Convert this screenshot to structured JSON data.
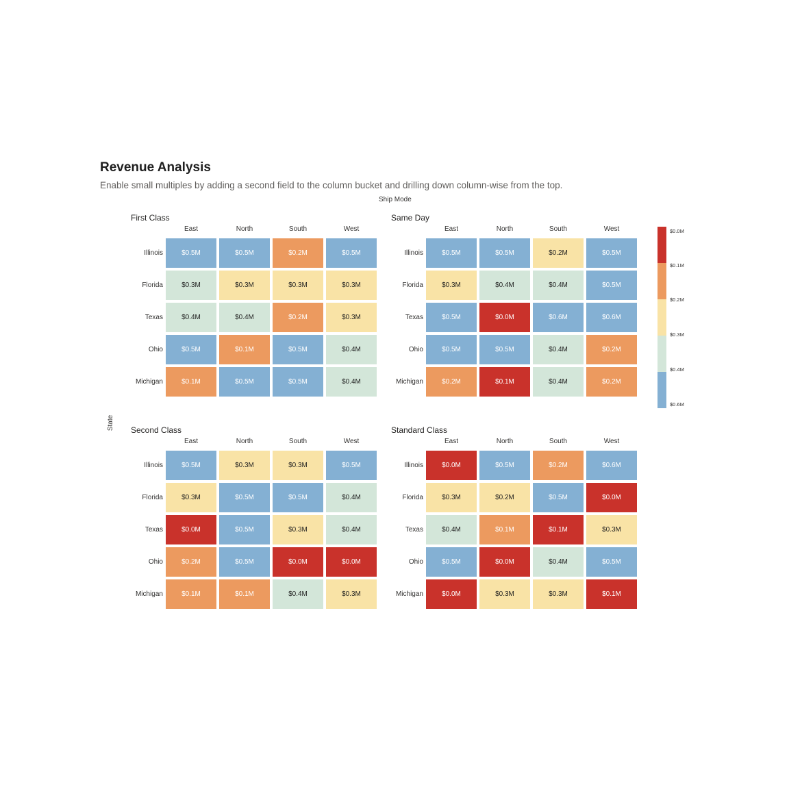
{
  "title": "Revenue Analysis",
  "subtitle": "Enable small multiples by adding a second field to the column bucket and drilling down column-wise from the top.",
  "column_field": "Ship Mode",
  "row_field": "State",
  "colors": {
    "0.0": "#c9322b",
    "0.1": "#ec9a5f",
    "0.2": "#f9e3a6",
    "0.3": "#d3e6d9",
    "0.4": "#84b0d3"
  },
  "legend": {
    "labels": [
      "$0.0M",
      "$0.1M",
      "$0.2M",
      "$0.3M",
      "$0.4M",
      "$0.6M"
    ],
    "colors": [
      "#c9322b",
      "#ec9a5f",
      "#f9e3a6",
      "#d3e6d9",
      "#84b0d3"
    ]
  },
  "chart_data": {
    "type": "heatmap",
    "columns": [
      "East",
      "North",
      "South",
      "West"
    ],
    "rows": [
      "Illinois",
      "Florida",
      "Texas",
      "Ohio",
      "Michigan"
    ],
    "panels": [
      {
        "name": "First Class",
        "values": [
          [
            "$0.5M",
            "$0.5M",
            "$0.2M",
            "$0.5M"
          ],
          [
            "$0.3M",
            "$0.3M",
            "$0.3M",
            "$0.3M"
          ],
          [
            "$0.4M",
            "$0.4M",
            "$0.2M",
            "$0.3M"
          ],
          [
            "$0.5M",
            "$0.1M",
            "$0.5M",
            "$0.4M"
          ],
          [
            "$0.1M",
            "$0.5M",
            "$0.5M",
            "$0.4M"
          ]
        ],
        "bands": [
          [
            "0.4",
            "0.4",
            "0.1",
            "0.4"
          ],
          [
            "0.3",
            "0.2",
            "0.2",
            "0.2"
          ],
          [
            "0.3",
            "0.3",
            "0.1",
            "0.2"
          ],
          [
            "0.4",
            "0.1",
            "0.4",
            "0.3"
          ],
          [
            "0.1",
            "0.4",
            "0.4",
            "0.3"
          ]
        ]
      },
      {
        "name": "Same Day",
        "values": [
          [
            "$0.5M",
            "$0.5M",
            "$0.2M",
            "$0.5M"
          ],
          [
            "$0.3M",
            "$0.4M",
            "$0.4M",
            "$0.5M"
          ],
          [
            "$0.5M",
            "$0.0M",
            "$0.6M",
            "$0.6M"
          ],
          [
            "$0.5M",
            "$0.5M",
            "$0.4M",
            "$0.2M"
          ],
          [
            "$0.2M",
            "$0.1M",
            "$0.4M",
            "$0.2M"
          ]
        ],
        "bands": [
          [
            "0.4",
            "0.4",
            "0.2",
            "0.4"
          ],
          [
            "0.2",
            "0.3",
            "0.3",
            "0.4"
          ],
          [
            "0.4",
            "0.0",
            "0.4",
            "0.4"
          ],
          [
            "0.4",
            "0.4",
            "0.3",
            "0.1"
          ],
          [
            "0.1",
            "0.0",
            "0.3",
            "0.1"
          ]
        ]
      },
      {
        "name": "Second Class",
        "values": [
          [
            "$0.5M",
            "$0.3M",
            "$0.3M",
            "$0.5M"
          ],
          [
            "$0.3M",
            "$0.5M",
            "$0.5M",
            "$0.4M"
          ],
          [
            "$0.0M",
            "$0.5M",
            "$0.3M",
            "$0.4M"
          ],
          [
            "$0.2M",
            "$0.5M",
            "$0.0M",
            "$0.0M"
          ],
          [
            "$0.1M",
            "$0.1M",
            "$0.4M",
            "$0.3M"
          ]
        ],
        "bands": [
          [
            "0.4",
            "0.2",
            "0.2",
            "0.4"
          ],
          [
            "0.2",
            "0.4",
            "0.4",
            "0.3"
          ],
          [
            "0.0",
            "0.4",
            "0.2",
            "0.3"
          ],
          [
            "0.1",
            "0.4",
            "0.0",
            "0.0"
          ],
          [
            "0.1",
            "0.1",
            "0.3",
            "0.2"
          ]
        ]
      },
      {
        "name": "Standard Class",
        "values": [
          [
            "$0.0M",
            "$0.5M",
            "$0.2M",
            "$0.6M"
          ],
          [
            "$0.3M",
            "$0.2M",
            "$0.5M",
            "$0.0M"
          ],
          [
            "$0.4M",
            "$0.1M",
            "$0.1M",
            "$0.3M"
          ],
          [
            "$0.5M",
            "$0.0M",
            "$0.4M",
            "$0.5M"
          ],
          [
            "$0.0M",
            "$0.3M",
            "$0.3M",
            "$0.1M"
          ]
        ],
        "bands": [
          [
            "0.0",
            "0.4",
            "0.1",
            "0.4"
          ],
          [
            "0.2",
            "0.2",
            "0.4",
            "0.0"
          ],
          [
            "0.3",
            "0.1",
            "0.0",
            "0.2"
          ],
          [
            "0.4",
            "0.0",
            "0.3",
            "0.4"
          ],
          [
            "0.0",
            "0.2",
            "0.2",
            "0.0"
          ]
        ]
      }
    ]
  }
}
